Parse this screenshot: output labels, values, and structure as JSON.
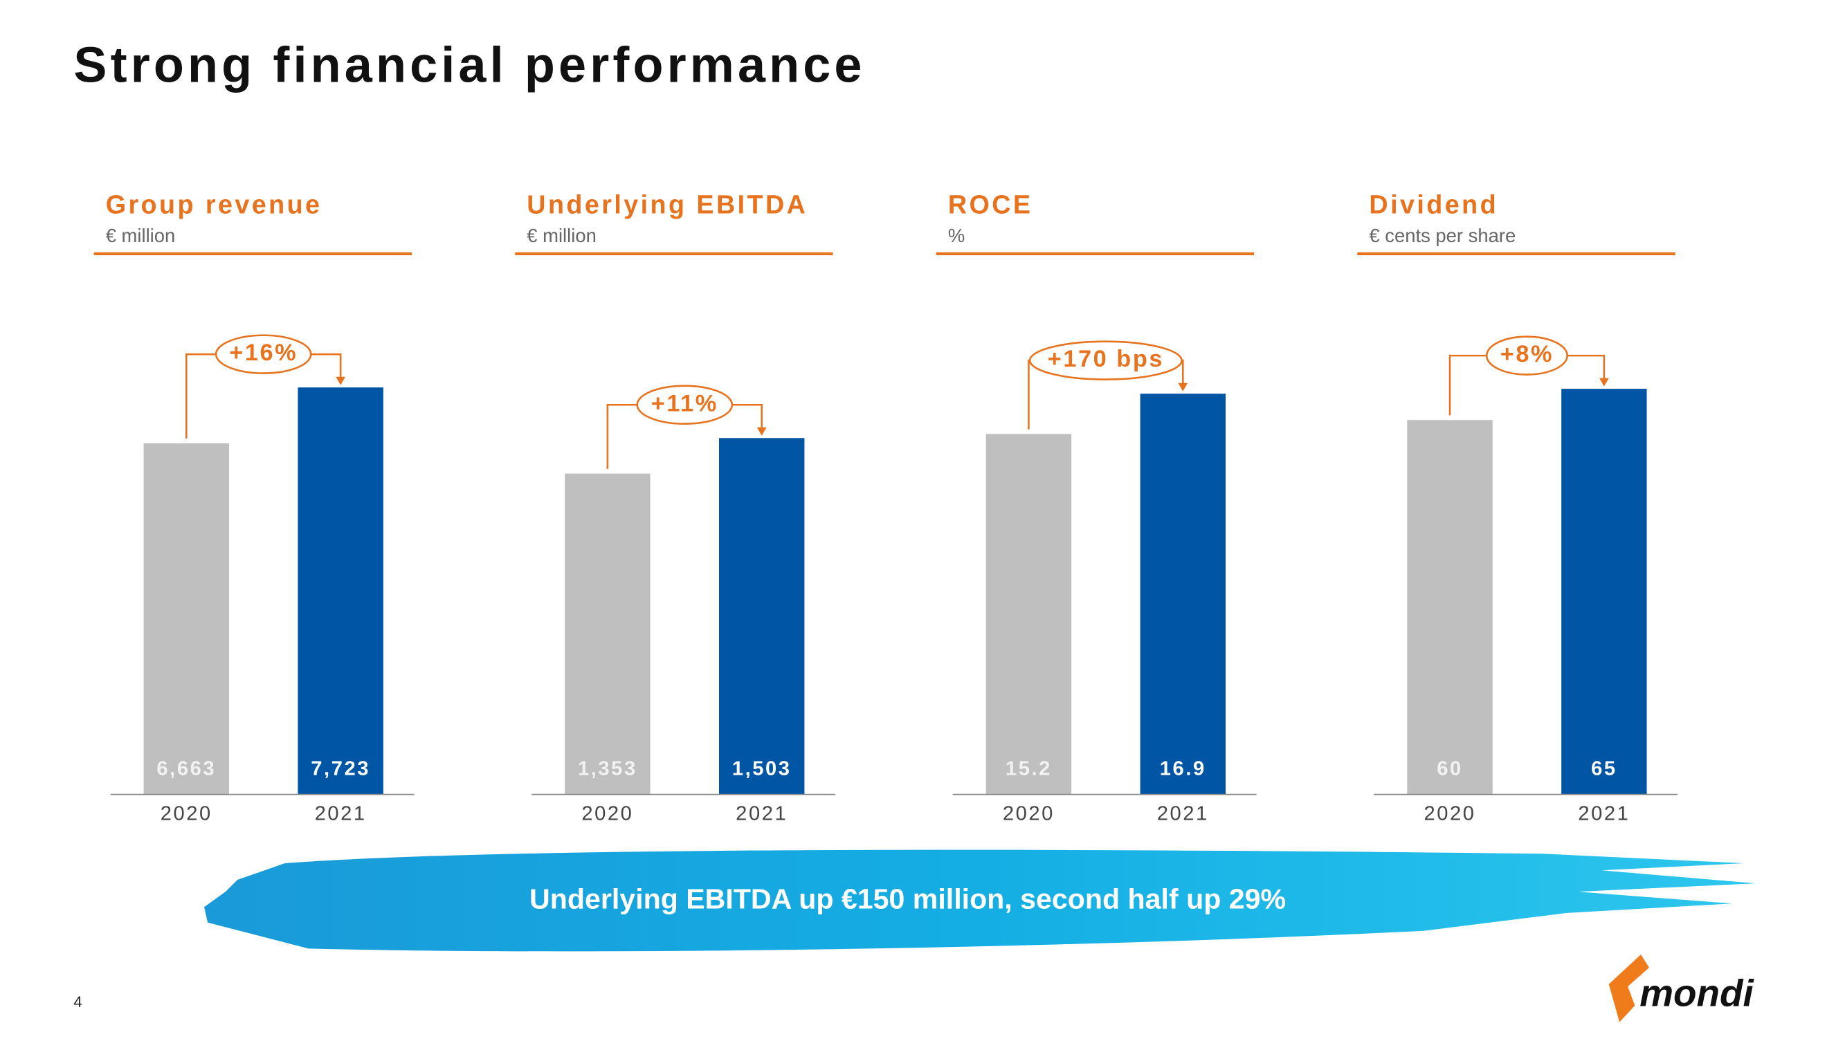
{
  "title": "Strong financial performance",
  "banner": "Underlying EBITDA up €150 million, second half up 29%",
  "page_number": "4",
  "logo": "mondi",
  "chart_data": [
    {
      "type": "bar",
      "title": "Group revenue",
      "subtitle": "€ million",
      "categories": [
        "2020",
        "2021"
      ],
      "values": [
        6663,
        7723
      ],
      "value_labels": [
        "6,663",
        "7,723"
      ],
      "colors": [
        "#bfbfbf",
        "#0055a5"
      ],
      "ylim": [
        0,
        9000
      ],
      "annotation": "+16%"
    },
    {
      "type": "bar",
      "title": "Underlying EBITDA",
      "subtitle": "€ million",
      "categories": [
        "2020",
        "2021"
      ],
      "values": [
        1353,
        1503
      ],
      "value_labels": [
        "1,353",
        "1,503"
      ],
      "colors": [
        "#bfbfbf",
        "#0055a5"
      ],
      "ylim": [
        0,
        2000
      ],
      "annotation": "+11%"
    },
    {
      "type": "bar",
      "title": "ROCE",
      "subtitle": "%",
      "categories": [
        "2020",
        "2021"
      ],
      "values": [
        15.2,
        16.9
      ],
      "value_labels": [
        "15.2",
        "16.9"
      ],
      "colors": [
        "#bfbfbf",
        "#0055a5"
      ],
      "ylim": [
        0,
        20
      ],
      "annotation": "+170 bps"
    },
    {
      "type": "bar",
      "title": "Dividend",
      "subtitle": "€ cents per share",
      "categories": [
        "2020",
        "2021"
      ],
      "values": [
        60,
        65
      ],
      "value_labels": [
        "60",
        "65"
      ],
      "colors": [
        "#bfbfbf",
        "#0055a5"
      ],
      "ylim": [
        0,
        76
      ],
      "annotation": "+8%"
    }
  ]
}
